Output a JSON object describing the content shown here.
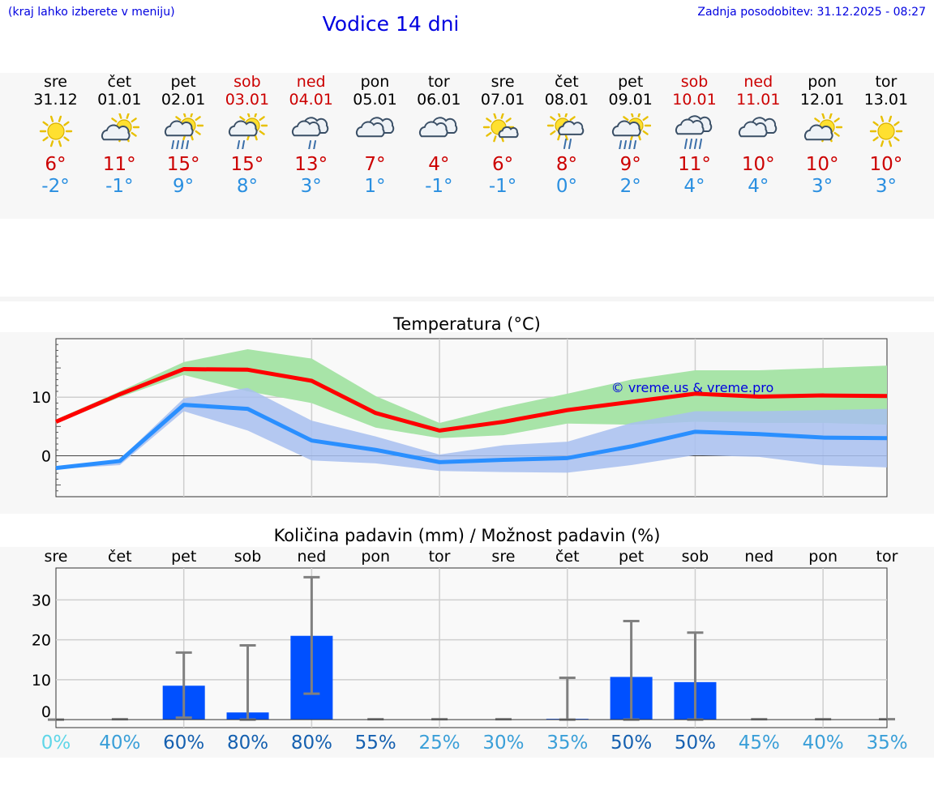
{
  "header": {
    "left_note": "(kraj lahko izberete v meniju)",
    "title": "Vodice 14 dni",
    "updated": "Zadnja posodobitev: 31.12.2025 - 08:27"
  },
  "forecast": [
    {
      "day": "sre",
      "date": "31.12",
      "icon": "sun-icon",
      "max": "6°",
      "min": "-2°",
      "weekend": false
    },
    {
      "day": "čet",
      "date": "01.01",
      "icon": "partly-cloudy-icon",
      "max": "11°",
      "min": "-1°",
      "weekend": false
    },
    {
      "day": "pet",
      "date": "02.01",
      "icon": "partly-cloudy-rain-icon",
      "max": "15°",
      "min": "9°",
      "weekend": false
    },
    {
      "day": "sob",
      "date": "03.01",
      "icon": "partly-cloudy-light-rain-icon",
      "max": "15°",
      "min": "8°",
      "weekend": true
    },
    {
      "day": "ned",
      "date": "04.01",
      "icon": "cloudy-light-rain-icon",
      "max": "13°",
      "min": "3°",
      "weekend": true
    },
    {
      "day": "pon",
      "date": "05.01",
      "icon": "cloudy-icon",
      "max": "7°",
      "min": "1°",
      "weekend": false
    },
    {
      "day": "tor",
      "date": "06.01",
      "icon": "cloudy-icon",
      "max": "4°",
      "min": "-1°",
      "weekend": false
    },
    {
      "day": "sre",
      "date": "07.01",
      "icon": "sun-small-cloud-icon",
      "max": "6°",
      "min": "-1°",
      "weekend": false
    },
    {
      "day": "čet",
      "date": "08.01",
      "icon": "sun-cloud-light-rain-icon",
      "max": "8°",
      "min": "0°",
      "weekend": false
    },
    {
      "day": "pet",
      "date": "09.01",
      "icon": "partly-cloudy-rain-icon",
      "max": "9°",
      "min": "2°",
      "weekend": false
    },
    {
      "day": "sob",
      "date": "10.01",
      "icon": "cloudy-rain-icon",
      "max": "11°",
      "min": "4°",
      "weekend": true
    },
    {
      "day": "ned",
      "date": "11.01",
      "icon": "cloudy-icon",
      "max": "10°",
      "min": "4°",
      "weekend": true
    },
    {
      "day": "pon",
      "date": "12.01",
      "icon": "partly-cloudy-icon",
      "max": "10°",
      "min": "3°",
      "weekend": false
    },
    {
      "day": "tor",
      "date": "13.01",
      "icon": "sun-icon",
      "max": "10°",
      "min": "3°",
      "weekend": false
    }
  ],
  "colors": {
    "weekend": "#cc0000",
    "weekday": "#000000",
    "max_line": "#ff0000",
    "min_line": "#2a8fff",
    "max_band": "#a8e4a8",
    "min_band": "#a8c0f0",
    "bars": "#0050ff",
    "whisker": "#808080",
    "copyright": "#0000e0"
  },
  "chart_data": [
    {
      "type": "line",
      "title": "Temperatura (°C)",
      "categories": [
        "31.12",
        "01.01",
        "02.01",
        "03.01",
        "04.01",
        "05.01",
        "06.01",
        "07.01",
        "08.01",
        "09.01",
        "10.01",
        "11.01",
        "12.01",
        "13.01"
      ],
      "ylim": [
        -7,
        20
      ],
      "yticks": [
        0,
        10
      ],
      "annotation": "© vreme.us & vreme.pro",
      "series": [
        {
          "name": "max",
          "values": [
            5.8,
            10.5,
            14.8,
            14.7,
            12.8,
            7.3,
            4.3,
            5.8,
            7.8,
            9.2,
            10.6,
            10.1,
            10.3,
            10.2
          ],
          "band_low": [
            5.5,
            10.0,
            13.8,
            11.0,
            9.0,
            4.8,
            3.0,
            3.5,
            5.5,
            5.3,
            5.8,
            5.6,
            5.6,
            5.3
          ],
          "band_high": [
            6.2,
            11.0,
            16.0,
            18.2,
            16.6,
            10.2,
            5.6,
            8.3,
            10.6,
            13.0,
            14.6,
            14.6,
            15.0,
            15.4
          ]
        },
        {
          "name": "min",
          "values": [
            -2.1,
            -0.9,
            8.7,
            8.0,
            2.6,
            1.0,
            -1.1,
            -0.7,
            -0.4,
            1.6,
            4.1,
            3.7,
            3.1,
            3.0
          ],
          "band_low": [
            -2.3,
            -1.6,
            7.6,
            4.3,
            -0.8,
            -1.3,
            -2.6,
            -2.8,
            -2.9,
            -1.6,
            0.1,
            -0.2,
            -1.6,
            -2.0
          ],
          "band_high": [
            -1.9,
            -0.6,
            9.8,
            11.6,
            6.0,
            3.3,
            0.2,
            1.8,
            2.4,
            5.6,
            7.6,
            7.6,
            7.8,
            8.0
          ]
        }
      ]
    },
    {
      "type": "bar",
      "title": "Količina padavin (mm) / Možnost padavin (%)",
      "categories": [
        "sre",
        "čet",
        "pet",
        "sob",
        "ned",
        "pon",
        "tor",
        "sre",
        "čet",
        "pet",
        "sob",
        "ned",
        "pon",
        "tor"
      ],
      "ylim": [
        -2,
        38
      ],
      "yticks": [
        0,
        10,
        20,
        30
      ],
      "values": [
        0,
        0,
        8.5,
        1.8,
        21,
        0,
        0,
        0,
        0.2,
        10.7,
        9.4,
        0,
        0,
        0
      ],
      "err_low": [
        0,
        0,
        0.5,
        0,
        6.5,
        0,
        0,
        0,
        0,
        0,
        0,
        0,
        0,
        0
      ],
      "err_high": [
        0,
        0.1,
        16.8,
        18.6,
        35.7,
        0.1,
        0.1,
        0.1,
        10.5,
        24.7,
        21.8,
        0.1,
        0.1,
        0.1
      ],
      "probability": [
        "0%",
        "40%",
        "60%",
        "80%",
        "80%",
        "55%",
        "25%",
        "30%",
        "35%",
        "50%",
        "50%",
        "45%",
        "40%",
        "35%"
      ],
      "probability_colors": [
        "#5fd6e8",
        "#3a9fd8",
        "#1560b0",
        "#1560b0",
        "#1560b0",
        "#1560b0",
        "#3a9fd8",
        "#3a9fd8",
        "#3a9fd8",
        "#1560b0",
        "#1560b0",
        "#3a9fd8",
        "#3a9fd8",
        "#3a9fd8"
      ]
    }
  ]
}
